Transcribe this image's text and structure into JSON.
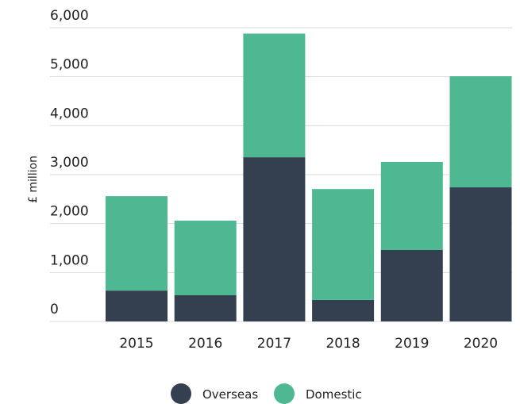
{
  "chart_data": {
    "type": "stacked_bar",
    "y_label": "£ million",
    "categories": [
      "2015",
      "2016",
      "2017",
      "2018",
      "2019",
      "2020"
    ],
    "series": [
      {
        "name": "Overseas",
        "color": "#343f50",
        "values": [
          630,
          535,
          3355,
          440,
          1460,
          2740
        ]
      },
      {
        "name": "Domestic",
        "color": "#4db892",
        "values": [
          1930,
          1525,
          2525,
          2265,
          1800,
          2270
        ]
      }
    ],
    "ylim": [
      0,
      6000
    ],
    "yticks": [
      0,
      {
        "value": 1000,
        "label": "1,000"
      },
      {
        "value": 2000,
        "label": "2,000"
      },
      {
        "value": 3000,
        "label": "3,000"
      },
      {
        "value": 4000,
        "label": "4,000"
      },
      {
        "value": 5000,
        "label": "5,000"
      },
      {
        "value": 6000,
        "label": "6,000"
      }
    ],
    "grid": true,
    "legend": "bottom"
  }
}
